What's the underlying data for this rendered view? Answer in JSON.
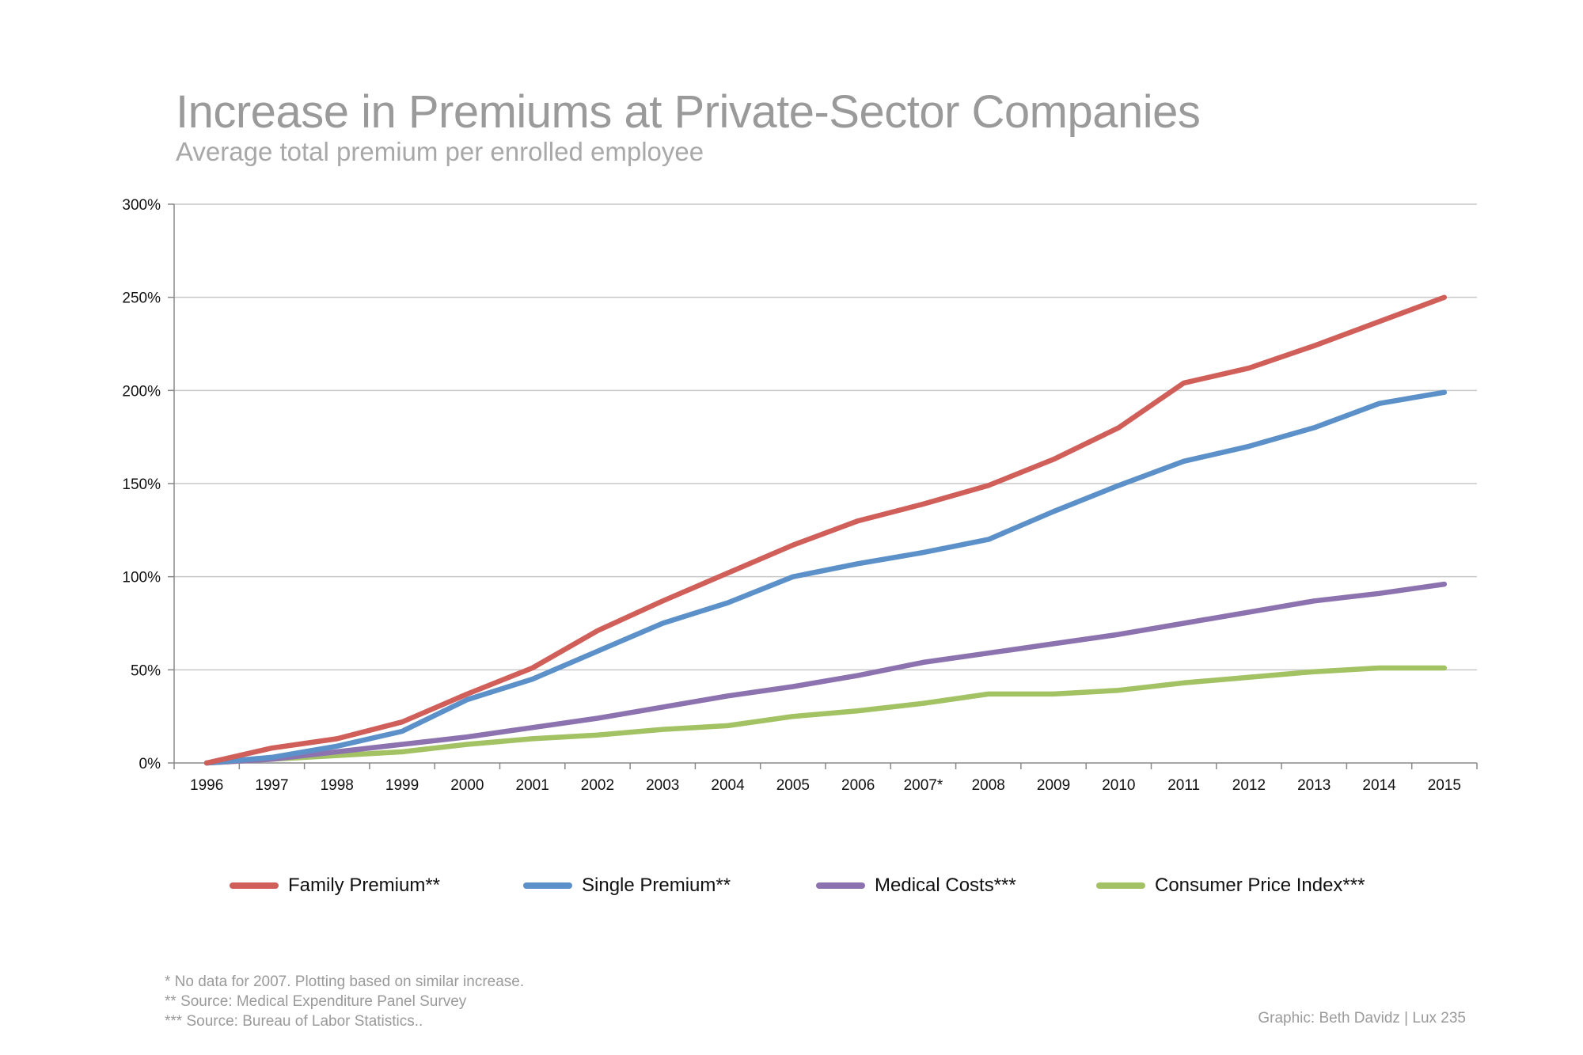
{
  "chart_data": {
    "type": "line",
    "title": "Increase in Premiums at Private-Sector Companies",
    "subtitle": "Average total premium per enrolled employee",
    "xlabel": "",
    "ylabel": "",
    "categories": [
      "1996",
      "1997",
      "1998",
      "1999",
      "2000",
      "2001",
      "2002",
      "2003",
      "2004",
      "2005",
      "2006",
      "2007*",
      "2008",
      "2009",
      "2010",
      "2011",
      "2012",
      "2013",
      "2014",
      "2015"
    ],
    "ylim": [
      0,
      300
    ],
    "yticks": [
      0,
      50,
      100,
      150,
      200,
      250,
      300
    ],
    "ytick_labels": [
      "0%",
      "50%",
      "100%",
      "150%",
      "200%",
      "250%",
      "300%"
    ],
    "grid": true,
    "legend_position": "bottom",
    "series": [
      {
        "name": "Family Premium**",
        "color": "#d05f5a",
        "values": [
          0,
          8,
          13,
          22,
          37,
          51,
          71,
          87,
          102,
          117,
          130,
          139,
          149,
          163,
          180,
          204,
          212,
          224,
          237,
          250
        ]
      },
      {
        "name": "Single Premium**",
        "color": "#5b90c8",
        "values": [
          0,
          3,
          9,
          17,
          34,
          45,
          60,
          75,
          86,
          100,
          107,
          113,
          120,
          135,
          149,
          162,
          170,
          180,
          193,
          199
        ]
      },
      {
        "name": "Medical Costs***",
        "color": "#8c73b0",
        "values": [
          0,
          2,
          6,
          10,
          14,
          19,
          24,
          30,
          36,
          41,
          47,
          54,
          59,
          64,
          69,
          75,
          81,
          87,
          91,
          96
        ]
      },
      {
        "name": "Consumer Price Index***",
        "color": "#a2c263",
        "values": [
          0,
          2,
          4,
          6,
          10,
          13,
          15,
          18,
          20,
          25,
          28,
          32,
          37,
          37,
          39,
          43,
          46,
          49,
          51,
          51
        ]
      }
    ]
  },
  "notes": [
    "* No data for 2007. Plotting based on similar increase.",
    "** Source: Medical Expenditure Panel Survey",
    "*** Source: Bureau of Labor Statistics.."
  ],
  "credit": "Graphic: Beth Davidz | Lux 235"
}
